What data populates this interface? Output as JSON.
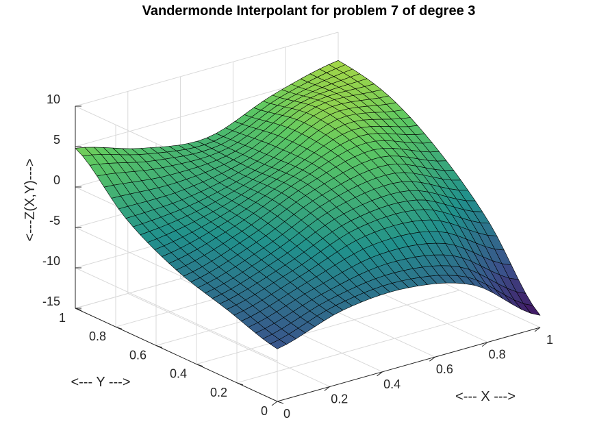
{
  "chart_data": {
    "type": "surface",
    "title": "Vandermonde Interpolant for problem 7 of degree 3",
    "xlabel": "<--- X --->",
    "ylabel": "<--- Y --->",
    "zlabel": "<---Z(X,Y)--->",
    "xlim": [
      0,
      1
    ],
    "ylim": [
      0,
      1
    ],
    "zlim": [
      -15,
      10
    ],
    "x_ticks": [
      0,
      0.2,
      0.4,
      0.6,
      0.8,
      1
    ],
    "y_ticks": [
      0,
      0.2,
      0.4,
      0.6,
      0.8,
      1
    ],
    "z_ticks": [
      -15,
      -10,
      -5,
      0,
      5,
      10
    ],
    "x_tick_labels": [
      "0",
      "0.2",
      "0.4",
      "0.6",
      "0.8",
      "1"
    ],
    "y_tick_labels": [
      "0",
      "0.2",
      "0.4",
      "0.6",
      "0.8",
      "1"
    ],
    "z_tick_labels": [
      "-15",
      "-10",
      "-5",
      "0",
      "5",
      "10"
    ],
    "grid": true,
    "colormap": [
      "#440154",
      "#3b528b",
      "#21918c",
      "#5ec962",
      "#fde725"
    ],
    "surface": {
      "x": [
        0,
        0.25,
        0.5,
        0.75,
        1
      ],
      "y": [
        0,
        0.25,
        0.5,
        0.75,
        1
      ],
      "z_rows_by_y": [
        [
          -8.5,
          -6.0,
          -5.5,
          -7.5,
          -13.5
        ],
        [
          -6.5,
          -4.0,
          -1.0,
          -1.0,
          -5.0
        ],
        [
          -4.5,
          -2.0,
          1.5,
          3.5,
          1.0
        ],
        [
          -1.0,
          -0.5,
          1.5,
          5.5,
          5.0
        ],
        [
          4.8,
          2.5,
          1.5,
          4.5,
          6.5
        ]
      ]
    }
  }
}
